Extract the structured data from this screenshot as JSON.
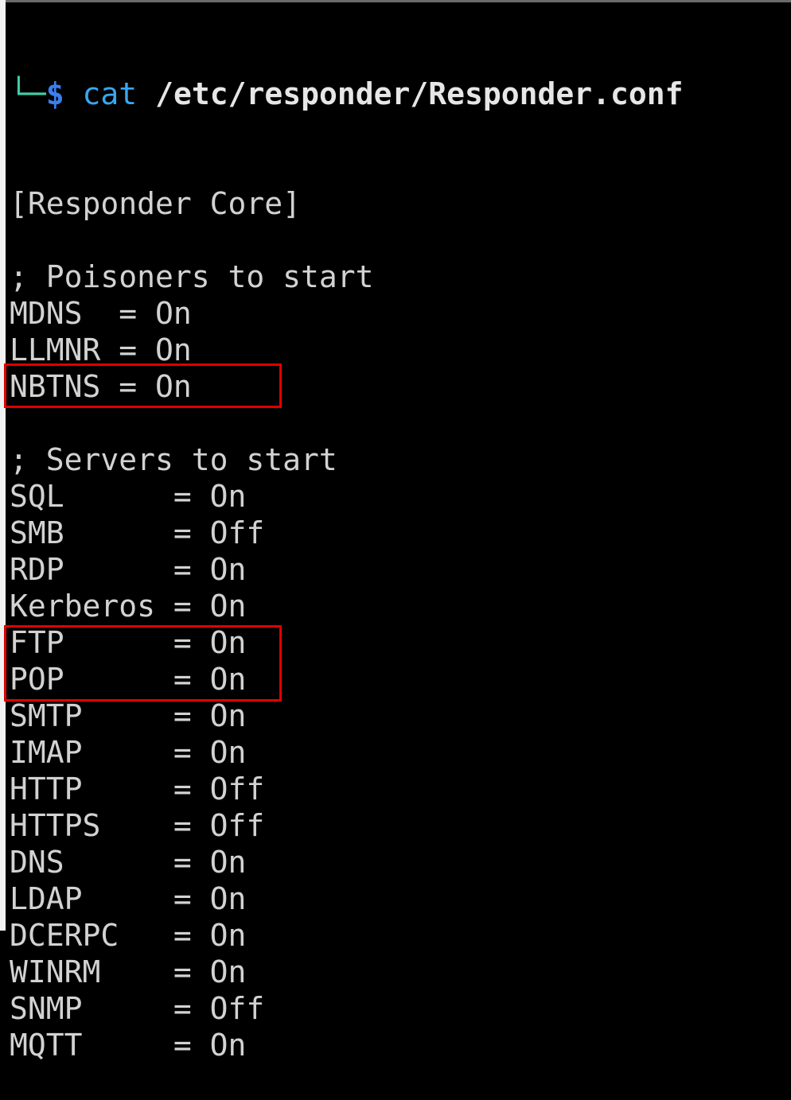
{
  "prompt": {
    "corner": "└─",
    "symbol": "$",
    "command": "cat",
    "argument": "/etc/responder/Responder.conf"
  },
  "lines": [
    "[Responder Core]",
    "",
    "; Poisoners to start",
    "MDNS  = On",
    "LLMNR = On",
    "NBTNS = On",
    "",
    "; Servers to start",
    "SQL      = On",
    "SMB      = Off",
    "RDP      = On",
    "Kerberos = On",
    "FTP      = On",
    "POP      = On",
    "SMTP     = On",
    "IMAP     = On",
    "HTTP     = Off",
    "HTTPS    = Off",
    "DNS      = On",
    "LDAP     = On",
    "DCERPC   = On",
    "WINRM    = On",
    "SNMP     = Off",
    "MQTT     = On"
  ],
  "highlights": [
    "SMB",
    "HTTP, HTTPS"
  ],
  "colors": {
    "highlight": "#e00000",
    "prompt_corner": "#3fd1a8",
    "command": "#3aa6f0"
  }
}
